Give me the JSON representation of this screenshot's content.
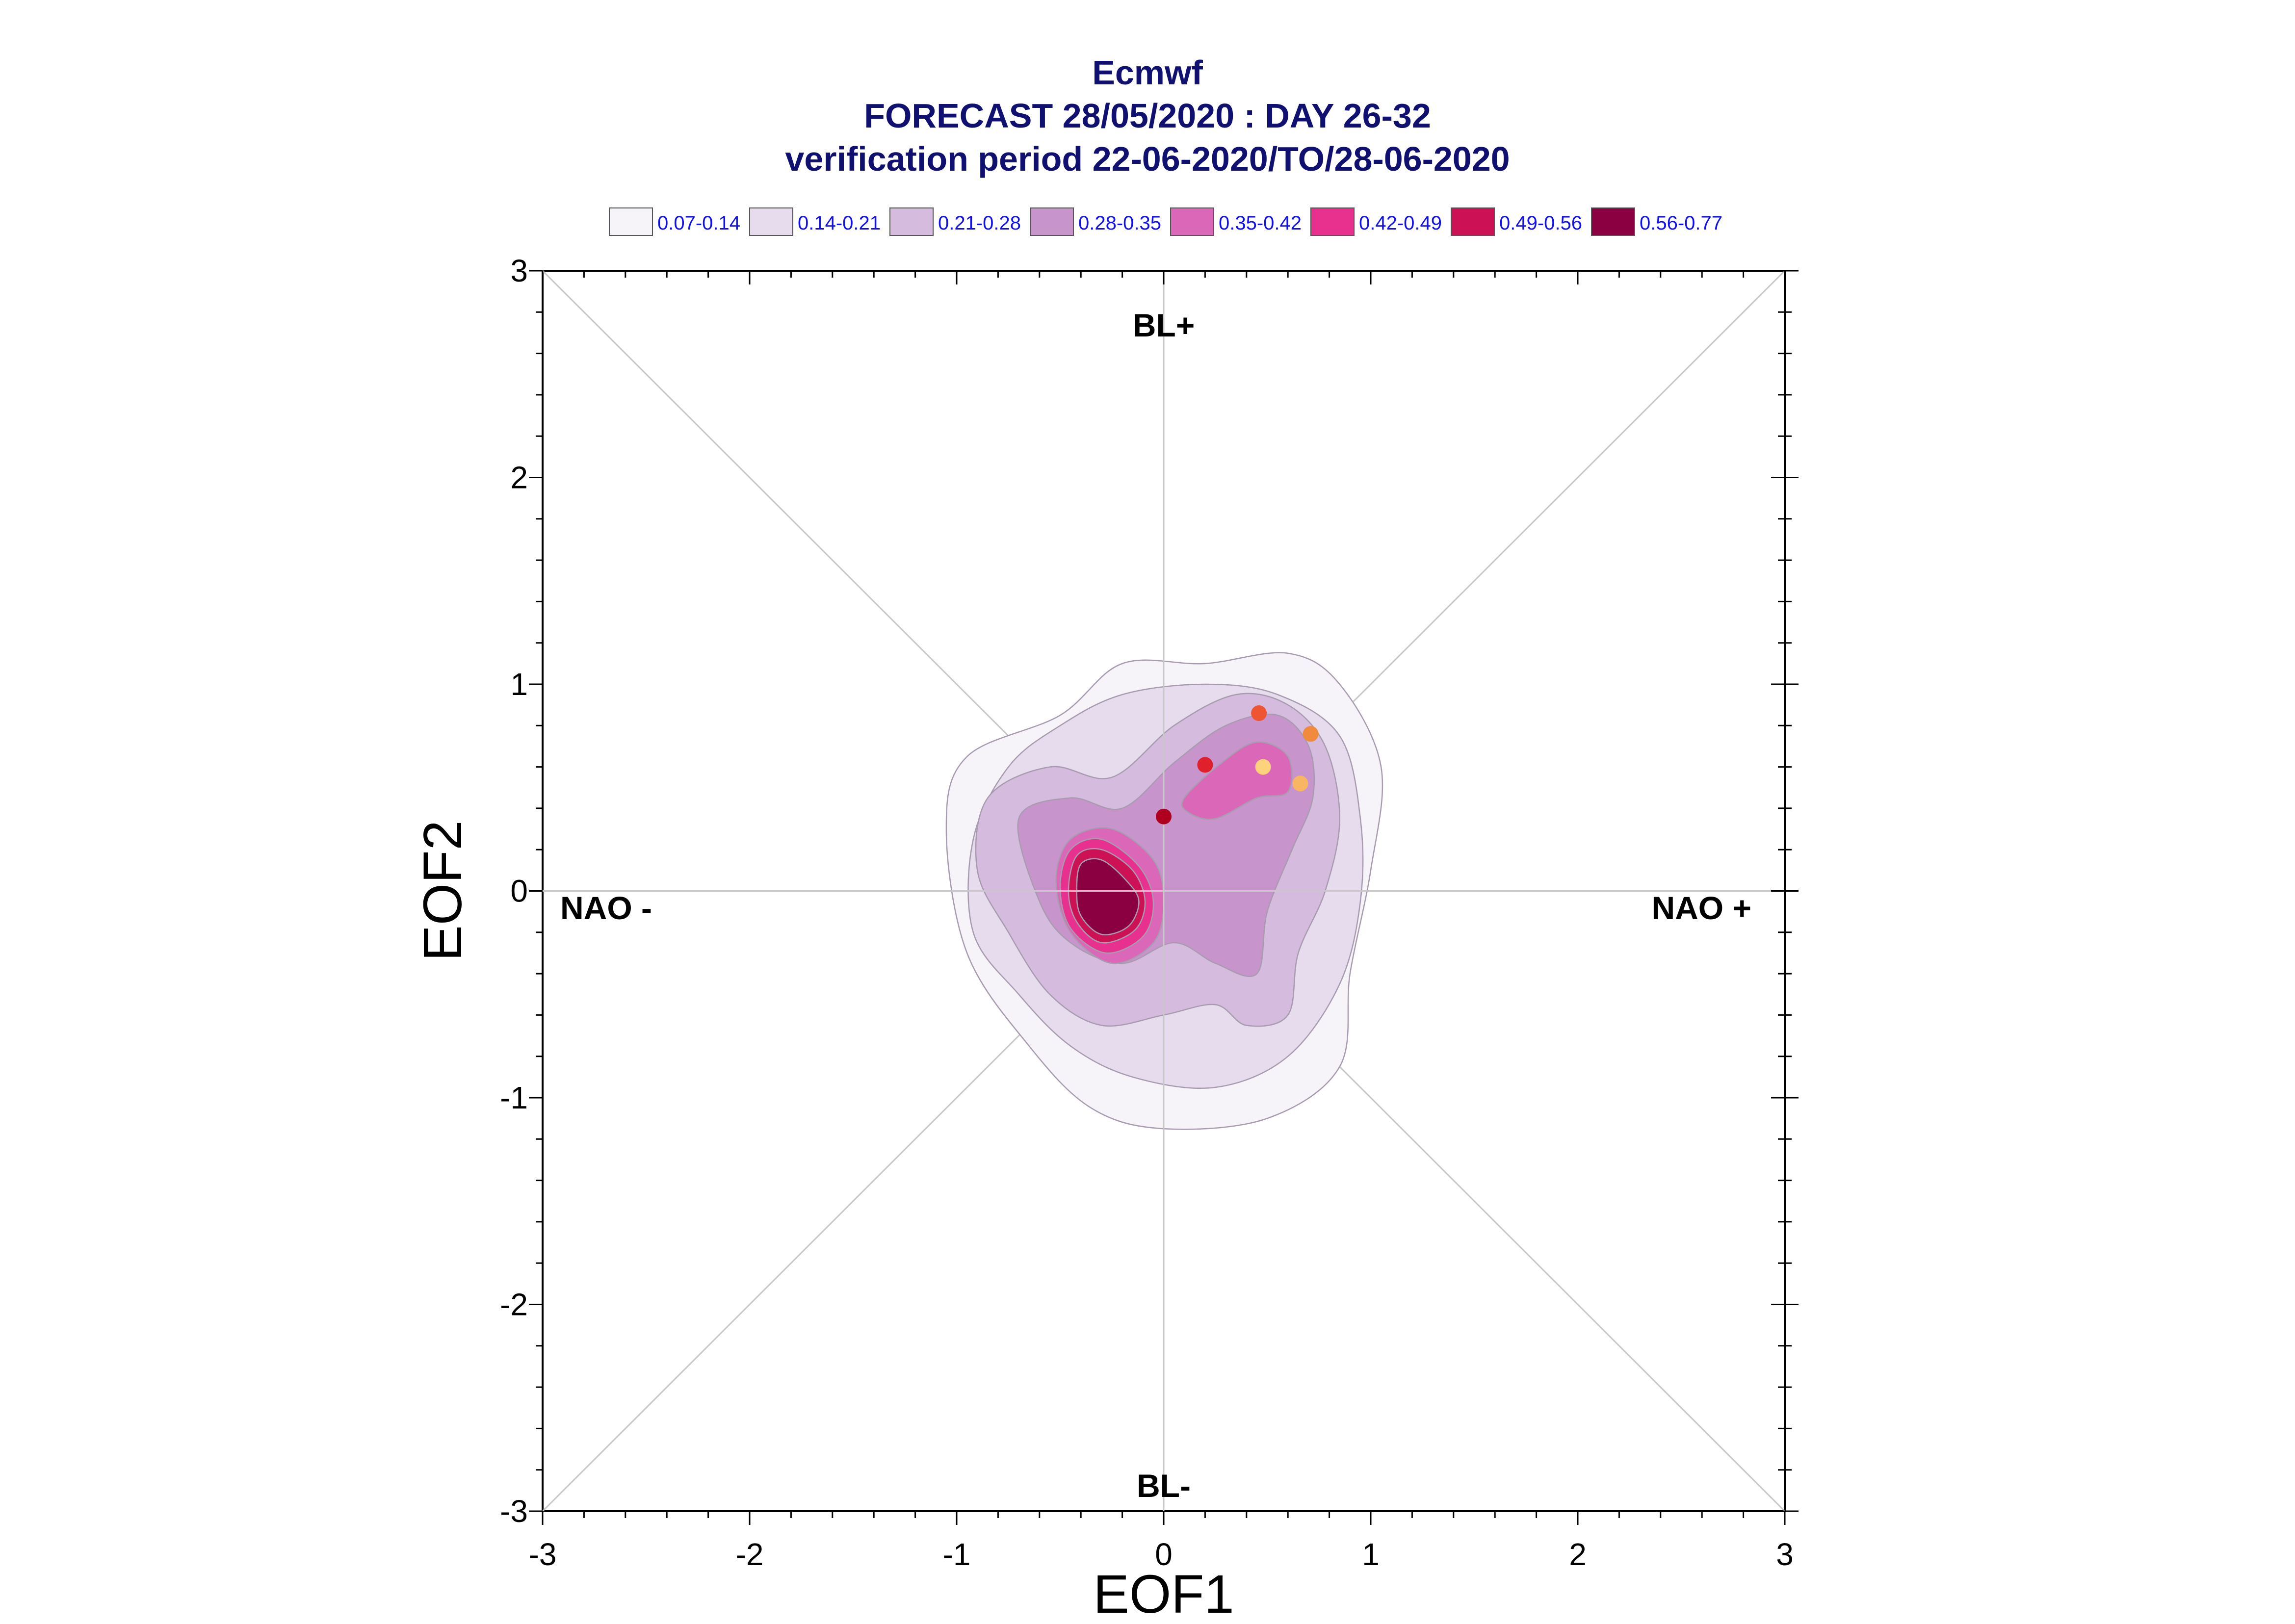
{
  "chart_data": {
    "type": "scatter",
    "title_lines": [
      "Ecmwf",
      "FORECAST 28/05/2020 : DAY 26-32",
      "verification period 22-06-2020/TO/28-06-2020"
    ],
    "xlabel": "EOF1",
    "ylabel": "EOF2",
    "xlim": [
      -3,
      3
    ],
    "ylim": [
      -3,
      3
    ],
    "x_ticks": [
      "-3",
      "-2",
      "-1",
      "0",
      "1",
      "2",
      "3"
    ],
    "y_ticks": [
      "-3",
      "-2",
      "-1",
      "0",
      "1",
      "2",
      "3"
    ],
    "regime_labels": {
      "top": "BL+",
      "bottom": "BL-",
      "left": "NAO -",
      "right": "NAO +"
    },
    "legend": [
      {
        "label": "0.07-0.14",
        "color": "#f6f3f9"
      },
      {
        "label": "0.14-0.21",
        "color": "#e6dcee"
      },
      {
        "label": "0.21-0.28",
        "color": "#d5bbdd"
      },
      {
        "label": "0.28-0.35",
        "color": "#c894cc"
      },
      {
        "label": "0.35-0.42",
        "color": "#da67b8"
      },
      {
        "label": "0.42-0.49",
        "color": "#e8308f"
      },
      {
        "label": "0.49-0.56",
        "color": "#cc1255"
      },
      {
        "label": "0.56-0.77",
        "color": "#8a0040"
      }
    ],
    "density_contours": [
      {
        "level": "0.07-0.14",
        "color": "#f6f3f9",
        "points": [
          [
            -0.5,
            0.85
          ],
          [
            -0.2,
            1.1
          ],
          [
            0.2,
            1.1
          ],
          [
            0.6,
            1.15
          ],
          [
            0.85,
            1.0
          ],
          [
            1.05,
            0.6
          ],
          [
            1.0,
            0.1
          ],
          [
            0.9,
            -0.4
          ],
          [
            0.85,
            -0.85
          ],
          [
            0.5,
            -1.1
          ],
          [
            0.0,
            -1.15
          ],
          [
            -0.35,
            -1.05
          ],
          [
            -0.65,
            -0.75
          ],
          [
            -0.95,
            -0.3
          ],
          [
            -1.05,
            0.3
          ],
          [
            -0.95,
            0.65
          ]
        ]
      },
      {
        "level": "0.14-0.21",
        "color": "#e6dcee",
        "points": [
          [
            -0.75,
            0.6
          ],
          [
            -0.5,
            0.8
          ],
          [
            -0.2,
            0.95
          ],
          [
            0.2,
            1.0
          ],
          [
            0.55,
            0.95
          ],
          [
            0.85,
            0.75
          ],
          [
            0.95,
            0.35
          ],
          [
            0.95,
            -0.05
          ],
          [
            0.85,
            -0.45
          ],
          [
            0.6,
            -0.8
          ],
          [
            0.25,
            -0.95
          ],
          [
            -0.15,
            -0.9
          ],
          [
            -0.45,
            -0.75
          ],
          [
            -0.7,
            -0.5
          ],
          [
            -0.92,
            -0.2
          ],
          [
            -0.92,
            0.25
          ]
        ]
      },
      {
        "level": "0.21-0.28",
        "color": "#d5bbdd",
        "points": [
          [
            -0.85,
            0.45
          ],
          [
            -0.55,
            0.6
          ],
          [
            -0.25,
            0.55
          ],
          [
            0.05,
            0.8
          ],
          [
            0.35,
            0.95
          ],
          [
            0.6,
            0.9
          ],
          [
            0.78,
            0.7
          ],
          [
            0.85,
            0.35
          ],
          [
            0.78,
            0.0
          ],
          [
            0.65,
            -0.3
          ],
          [
            0.6,
            -0.6
          ],
          [
            0.4,
            -0.65
          ],
          [
            0.25,
            -0.55
          ],
          [
            0.0,
            -0.6
          ],
          [
            -0.3,
            -0.65
          ],
          [
            -0.55,
            -0.5
          ],
          [
            -0.75,
            -0.2
          ],
          [
            -0.9,
            0.1
          ]
        ]
      },
      {
        "level": "0.28-0.35",
        "color": "#c894cc",
        "points": [
          [
            -0.7,
            0.35
          ],
          [
            -0.45,
            0.45
          ],
          [
            -0.2,
            0.4
          ],
          [
            0.05,
            0.62
          ],
          [
            0.3,
            0.8
          ],
          [
            0.55,
            0.85
          ],
          [
            0.7,
            0.7
          ],
          [
            0.72,
            0.45
          ],
          [
            0.62,
            0.2
          ],
          [
            0.5,
            -0.1
          ],
          [
            0.45,
            -0.4
          ],
          [
            0.25,
            -0.35
          ],
          [
            0.05,
            -0.25
          ],
          [
            -0.2,
            -0.35
          ],
          [
            -0.45,
            -0.25
          ],
          [
            -0.6,
            -0.05
          ]
        ]
      },
      {
        "level": "0.35-0.42",
        "color": "#da67b8",
        "points": [
          [
            -0.45,
            0.25
          ],
          [
            -0.25,
            0.3
          ],
          [
            -0.05,
            0.15
          ],
          [
            0.0,
            -0.05
          ],
          [
            -0.05,
            -0.25
          ],
          [
            -0.25,
            -0.35
          ],
          [
            -0.45,
            -0.2
          ],
          [
            -0.52,
            0.05
          ]
        ]
      },
      {
        "level": "0.35-0.42",
        "color": "#da67b8",
        "points": [
          [
            0.1,
            0.45
          ],
          [
            0.28,
            0.62
          ],
          [
            0.45,
            0.72
          ],
          [
            0.6,
            0.65
          ],
          [
            0.6,
            0.48
          ],
          [
            0.45,
            0.45
          ],
          [
            0.25,
            0.35
          ],
          [
            0.12,
            0.38
          ]
        ]
      },
      {
        "level": "0.42-0.49",
        "color": "#e8308f",
        "points": [
          [
            -0.45,
            0.2
          ],
          [
            -0.3,
            0.25
          ],
          [
            -0.12,
            0.12
          ],
          [
            -0.05,
            -0.05
          ],
          [
            -0.1,
            -0.22
          ],
          [
            -0.28,
            -0.3
          ],
          [
            -0.45,
            -0.18
          ],
          [
            -0.5,
            0.02
          ]
        ]
      },
      {
        "level": "0.49-0.56",
        "color": "#cc1255",
        "points": [
          [
            -0.42,
            0.17
          ],
          [
            -0.3,
            0.2
          ],
          [
            -0.15,
            0.1
          ],
          [
            -0.09,
            -0.05
          ],
          [
            -0.14,
            -0.19
          ],
          [
            -0.3,
            -0.25
          ],
          [
            -0.42,
            -0.15
          ],
          [
            -0.46,
            0.0
          ]
        ]
      },
      {
        "level": "0.56-0.77",
        "color": "#8a0040",
        "points": [
          [
            -0.4,
            0.13
          ],
          [
            -0.3,
            0.15
          ],
          [
            -0.18,
            0.05
          ],
          [
            -0.12,
            -0.05
          ],
          [
            -0.17,
            -0.17
          ],
          [
            -0.3,
            -0.21
          ],
          [
            -0.4,
            -0.12
          ],
          [
            -0.42,
            0.0
          ]
        ]
      }
    ],
    "points": [
      {
        "x": 0.0,
        "y": 0.36,
        "color": "#b00020"
      },
      {
        "x": 0.2,
        "y": 0.61,
        "color": "#e0202a"
      },
      {
        "x": 0.46,
        "y": 0.86,
        "color": "#ee5533"
      },
      {
        "x": 0.71,
        "y": 0.76,
        "color": "#f08a3c"
      },
      {
        "x": 0.48,
        "y": 0.6,
        "color": "#fcd27a"
      },
      {
        "x": 0.66,
        "y": 0.52,
        "color": "#f8b663"
      }
    ],
    "grid": false
  }
}
